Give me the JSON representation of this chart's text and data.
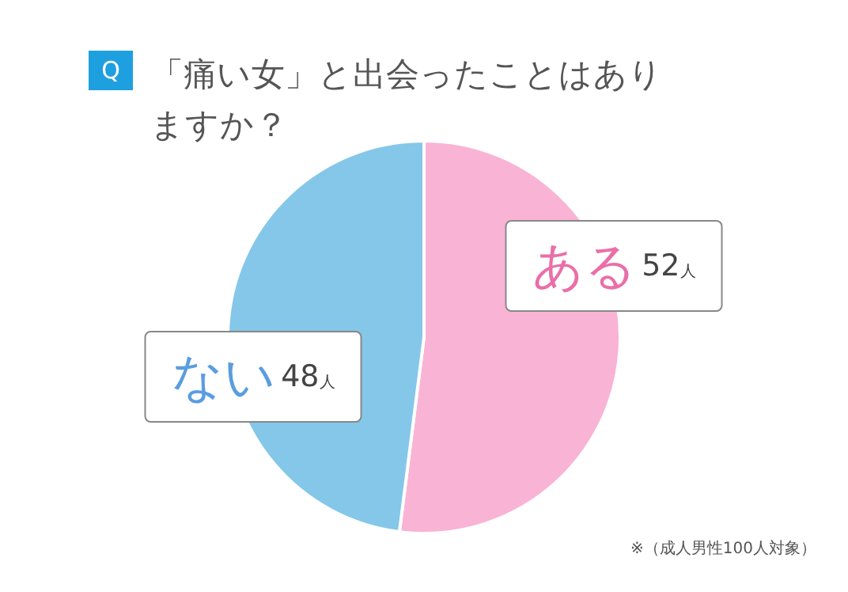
{
  "chart_data": {
    "type": "pie",
    "title": "「痛い女」と出会ったことはありますか？",
    "categories": [
      "ある",
      "ない"
    ],
    "values": [
      52,
      48
    ],
    "value_labels": [
      "52人",
      "48人"
    ],
    "colors": [
      "#f9b3d5",
      "#84c7e9"
    ],
    "annotations": [
      "Q",
      "※（成人男性100人対象）"
    ],
    "legend": false
  }
}
